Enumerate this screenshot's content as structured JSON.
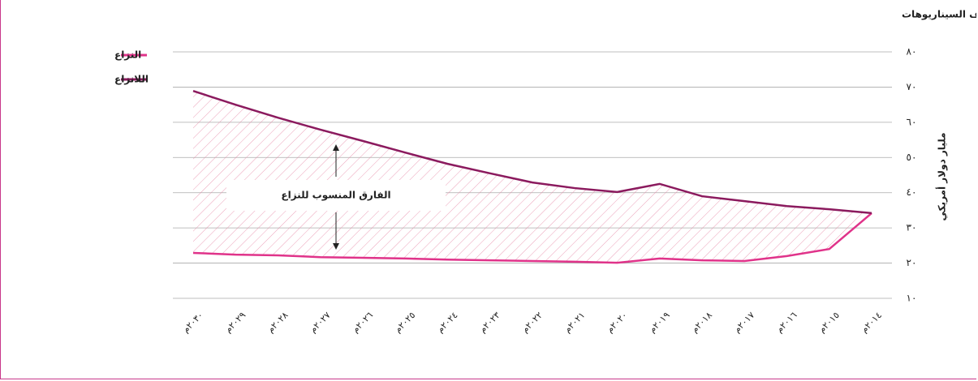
{
  "chart_data": {
    "type": "line",
    "title": "الناتج المحلي الإجمالي (بأسعار الصرف في السوق) في اليمن في في مختلف السيناريوهات",
    "y_label": "مليار دولار أمريكي",
    "annotation": "الفارق المنسوب للنزاع",
    "categories": [
      "٢٠١٤م",
      "٢٠١٥م",
      "٢٠١٦م",
      "٢٠١٧م",
      "٢٠١٨م",
      "٢٠١٩م",
      "٢٠٢٠م",
      "٢٠٢١م",
      "٢٠٢٢م",
      "٢٠٢٣م",
      "٢٠٢٤م",
      "٢٠٢٥م",
      "٢٠٢٦م",
      "٢٠٢٧م",
      "٢٠٢٨م",
      "٢٠٢٩م",
      "٢٠٣٠م"
    ],
    "series": [
      {
        "name": "النزاع",
        "color": "#e0338a",
        "values": [
          34.2,
          24.0,
          22.0,
          20.6,
          20.8,
          21.3,
          20.1,
          20.4,
          20.6,
          20.8,
          21.0,
          21.3,
          21.5,
          21.7,
          22.2,
          22.4,
          22.9
        ]
      },
      {
        "name": "اللانزاع",
        "color": "#8b1a5e",
        "values": [
          34.2,
          35.3,
          36.2,
          37.6,
          39.0,
          42.5,
          40.2,
          41.3,
          42.9,
          45.5,
          48.2,
          51.4,
          54.7,
          57.9,
          61.3,
          65.0,
          68.9
        ]
      }
    ],
    "ylim": [
      10,
      80
    ],
    "yticks": [
      {
        "value": 10,
        "label": "١٠"
      },
      {
        "value": 20,
        "label": "٢٠"
      },
      {
        "value": 30,
        "label": "٣٠"
      },
      {
        "value": 40,
        "label": "٤٠"
      },
      {
        "value": 50,
        "label": "٥٠"
      },
      {
        "value": 60,
        "label": "٦٠"
      },
      {
        "value": 70,
        "label": "٧٠"
      },
      {
        "value": 80,
        "label": "٨٠"
      }
    ],
    "grid": true,
    "legend": "top-left"
  }
}
